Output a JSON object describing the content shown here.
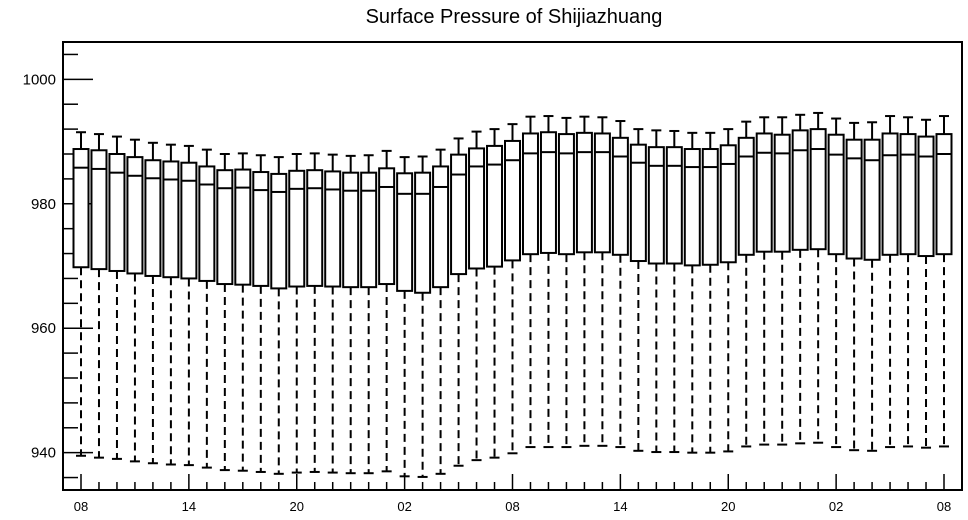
{
  "chart_data": {
    "type": "boxplot",
    "title": "Surface Pressure of Shijiazhuang",
    "xlabel": "",
    "ylabel": "",
    "ylim": [
      934,
      1006
    ],
    "y_ticks": [
      940,
      960,
      980,
      1000
    ],
    "y_tick_labels": [
      "940",
      "960",
      "980",
      "1000"
    ],
    "x_tick_labels": [
      "08",
      "14",
      "20",
      "02",
      "08",
      "14",
      "20",
      "02",
      "08"
    ],
    "x_tick_positions": [
      0,
      6,
      12,
      18,
      24,
      30,
      36,
      42,
      48
    ],
    "series": [
      {
        "values": [
          {
            "x": 0,
            "whisker_low": 939.5,
            "q1": 969.8,
            "median": 985.8,
            "q3": 988.8,
            "whisker_high": 991.5
          },
          {
            "x": 1,
            "whisker_low": 939.2,
            "q1": 969.5,
            "median": 985.6,
            "q3": 988.6,
            "whisker_high": 991.2
          },
          {
            "x": 2,
            "whisker_low": 939.0,
            "q1": 969.2,
            "median": 985.0,
            "q3": 988.0,
            "whisker_high": 990.8
          },
          {
            "x": 3,
            "whisker_low": 938.6,
            "q1": 968.8,
            "median": 984.5,
            "q3": 987.5,
            "whisker_high": 990.3
          },
          {
            "x": 4,
            "whisker_low": 938.3,
            "q1": 968.4,
            "median": 984.1,
            "q3": 987.0,
            "whisker_high": 989.8
          },
          {
            "x": 5,
            "whisker_low": 938.1,
            "q1": 968.2,
            "median": 983.9,
            "q3": 986.8,
            "whisker_high": 989.5
          },
          {
            "x": 6,
            "whisker_low": 938.0,
            "q1": 968.0,
            "median": 983.7,
            "q3": 986.6,
            "whisker_high": 989.3
          },
          {
            "x": 7,
            "whisker_low": 937.6,
            "q1": 967.6,
            "median": 983.1,
            "q3": 986.0,
            "whisker_high": 988.7
          },
          {
            "x": 8,
            "whisker_low": 937.2,
            "q1": 967.1,
            "median": 982.5,
            "q3": 985.4,
            "whisker_high": 988.0
          },
          {
            "x": 9,
            "whisker_low": 937.1,
            "q1": 967.0,
            "median": 982.6,
            "q3": 985.5,
            "whisker_high": 988.1
          },
          {
            "x": 10,
            "whisker_low": 936.9,
            "q1": 966.8,
            "median": 982.2,
            "q3": 985.1,
            "whisker_high": 987.8
          },
          {
            "x": 11,
            "whisker_low": 936.6,
            "q1": 966.4,
            "median": 981.9,
            "q3": 984.8,
            "whisker_high": 987.5
          },
          {
            "x": 12,
            "whisker_low": 936.8,
            "q1": 966.7,
            "median": 982.4,
            "q3": 985.3,
            "whisker_high": 988.0
          },
          {
            "x": 13,
            "whisker_low": 936.9,
            "q1": 966.8,
            "median": 982.5,
            "q3": 985.4,
            "whisker_high": 988.1
          },
          {
            "x": 14,
            "whisker_low": 936.8,
            "q1": 966.7,
            "median": 982.3,
            "q3": 985.2,
            "whisker_high": 987.9
          },
          {
            "x": 15,
            "whisker_low": 936.7,
            "q1": 966.6,
            "median": 982.1,
            "q3": 985.0,
            "whisker_high": 987.7
          },
          {
            "x": 16,
            "whisker_low": 936.7,
            "q1": 966.6,
            "median": 982.1,
            "q3": 985.0,
            "whisker_high": 987.8
          },
          {
            "x": 17,
            "whisker_low": 937.0,
            "q1": 967.1,
            "median": 982.7,
            "q3": 985.7,
            "whisker_high": 988.5
          },
          {
            "x": 18,
            "whisker_low": 936.2,
            "q1": 966.0,
            "median": 981.6,
            "q3": 984.9,
            "whisker_high": 987.5
          },
          {
            "x": 19,
            "whisker_low": 936.1,
            "q1": 965.7,
            "median": 981.6,
            "q3": 985.0,
            "whisker_high": 987.6
          },
          {
            "x": 20,
            "whisker_low": 936.6,
            "q1": 966.6,
            "median": 982.7,
            "q3": 986.0,
            "whisker_high": 988.7
          },
          {
            "x": 21,
            "whisker_low": 937.9,
            "q1": 968.7,
            "median": 984.7,
            "q3": 987.9,
            "whisker_high": 990.5
          },
          {
            "x": 22,
            "whisker_low": 938.8,
            "q1": 969.6,
            "median": 986.0,
            "q3": 988.9,
            "whisker_high": 991.6
          },
          {
            "x": 23,
            "whisker_low": 939.2,
            "q1": 969.9,
            "median": 986.3,
            "q3": 989.3,
            "whisker_high": 992.0
          },
          {
            "x": 24,
            "whisker_low": 939.9,
            "q1": 970.9,
            "median": 987.0,
            "q3": 990.1,
            "whisker_high": 992.8
          },
          {
            "x": 25,
            "whisker_low": 940.9,
            "q1": 971.9,
            "median": 988.1,
            "q3": 991.3,
            "whisker_high": 994.0
          },
          {
            "x": 26,
            "whisker_low": 940.9,
            "q1": 972.1,
            "median": 988.3,
            "q3": 991.5,
            "whisker_high": 994.1
          },
          {
            "x": 27,
            "whisker_low": 940.9,
            "q1": 971.9,
            "median": 988.1,
            "q3": 991.2,
            "whisker_high": 993.8
          },
          {
            "x": 28,
            "whisker_low": 941.1,
            "q1": 972.2,
            "median": 988.3,
            "q3": 991.4,
            "whisker_high": 994.0
          },
          {
            "x": 29,
            "whisker_low": 941.1,
            "q1": 972.2,
            "median": 988.3,
            "q3": 991.3,
            "whisker_high": 993.9
          },
          {
            "x": 30,
            "whisker_low": 940.9,
            "q1": 971.8,
            "median": 987.6,
            "q3": 990.6,
            "whisker_high": 993.3
          },
          {
            "x": 31,
            "whisker_low": 940.3,
            "q1": 970.8,
            "median": 986.6,
            "q3": 989.5,
            "whisker_high": 992.0
          },
          {
            "x": 32,
            "whisker_low": 940.1,
            "q1": 970.4,
            "median": 986.1,
            "q3": 989.1,
            "whisker_high": 991.8
          },
          {
            "x": 33,
            "whisker_low": 940.1,
            "q1": 970.4,
            "median": 986.1,
            "q3": 989.1,
            "whisker_high": 991.7
          },
          {
            "x": 34,
            "whisker_low": 940.0,
            "q1": 970.1,
            "median": 985.9,
            "q3": 988.8,
            "whisker_high": 991.4
          },
          {
            "x": 35,
            "whisker_low": 940.0,
            "q1": 970.2,
            "median": 985.9,
            "q3": 988.8,
            "whisker_high": 991.4
          },
          {
            "x": 36,
            "whisker_low": 940.2,
            "q1": 970.6,
            "median": 986.4,
            "q3": 989.4,
            "whisker_high": 992.0
          },
          {
            "x": 37,
            "whisker_low": 941.0,
            "q1": 971.8,
            "median": 987.6,
            "q3": 990.6,
            "whisker_high": 993.2
          },
          {
            "x": 38,
            "whisker_low": 941.3,
            "q1": 972.3,
            "median": 988.2,
            "q3": 991.3,
            "whisker_high": 993.9
          },
          {
            "x": 39,
            "whisker_low": 941.3,
            "q1": 972.3,
            "median": 988.1,
            "q3": 991.1,
            "whisker_high": 993.9
          },
          {
            "x": 40,
            "whisker_low": 941.5,
            "q1": 972.6,
            "median": 988.6,
            "q3": 991.8,
            "whisker_high": 994.3
          },
          {
            "x": 41,
            "whisker_low": 941.6,
            "q1": 972.7,
            "median": 988.8,
            "q3": 992.0,
            "whisker_high": 994.6
          },
          {
            "x": 42,
            "whisker_low": 940.9,
            "q1": 971.9,
            "median": 987.9,
            "q3": 991.1,
            "whisker_high": 993.7
          },
          {
            "x": 43,
            "whisker_low": 940.4,
            "q1": 971.2,
            "median": 987.3,
            "q3": 990.3,
            "whisker_high": 993.0
          },
          {
            "x": 44,
            "whisker_low": 940.3,
            "q1": 971.0,
            "median": 987.0,
            "q3": 990.3,
            "whisker_high": 993.1
          },
          {
            "x": 45,
            "whisker_low": 940.9,
            "q1": 971.8,
            "median": 987.8,
            "q3": 991.3,
            "whisker_high": 994.1
          },
          {
            "x": 46,
            "whisker_low": 941.0,
            "q1": 971.9,
            "median": 987.9,
            "q3": 991.2,
            "whisker_high": 993.9
          },
          {
            "x": 47,
            "whisker_low": 940.8,
            "q1": 971.6,
            "median": 987.6,
            "q3": 990.8,
            "whisker_high": 993.5
          },
          {
            "x": 48,
            "whisker_low": 941.0,
            "q1": 971.9,
            "median": 988.0,
            "q3": 991.2,
            "whisker_high": 994.1
          }
        ]
      }
    ]
  }
}
